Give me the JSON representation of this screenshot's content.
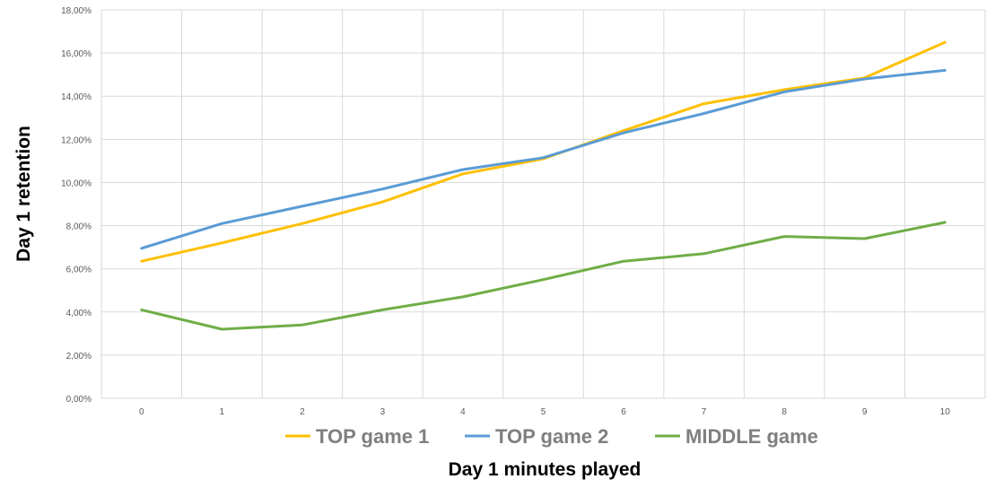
{
  "chart_data": {
    "type": "line",
    "title": "",
    "xlabel": "Day 1 minutes played",
    "ylabel": "Day 1 retention",
    "x": [
      0,
      1,
      2,
      3,
      4,
      5,
      6,
      7,
      8,
      9,
      10
    ],
    "x_tick_labels": [
      "0",
      "1",
      "2",
      "3",
      "4",
      "5",
      "6",
      "7",
      "8",
      "9",
      "10"
    ],
    "y_tick_labels": [
      "0,00%",
      "2,00%",
      "4,00%",
      "6,00%",
      "8,00%",
      "10,00%",
      "12,00%",
      "14,00%",
      "16,00%",
      "18,00%"
    ],
    "ylim": [
      0,
      18
    ],
    "y_unit": "%",
    "grid": true,
    "legend_position": "bottom",
    "series": [
      {
        "name": "TOP game 1",
        "color": "#FFC000",
        "values": [
          6.35,
          7.2,
          8.1,
          9.1,
          10.4,
          11.1,
          12.4,
          13.65,
          14.3,
          14.85,
          16.5
        ]
      },
      {
        "name": "TOP game 2",
        "color": "#5B9BD5",
        "values": [
          6.95,
          8.1,
          8.9,
          9.7,
          10.6,
          11.15,
          12.3,
          13.2,
          14.2,
          14.8,
          15.2
        ]
      },
      {
        "name": "MIDDLE game",
        "color": "#70AD47",
        "values": [
          4.1,
          3.2,
          3.4,
          4.1,
          4.7,
          5.5,
          6.35,
          6.7,
          7.5,
          7.4,
          8.15
        ]
      }
    ]
  }
}
